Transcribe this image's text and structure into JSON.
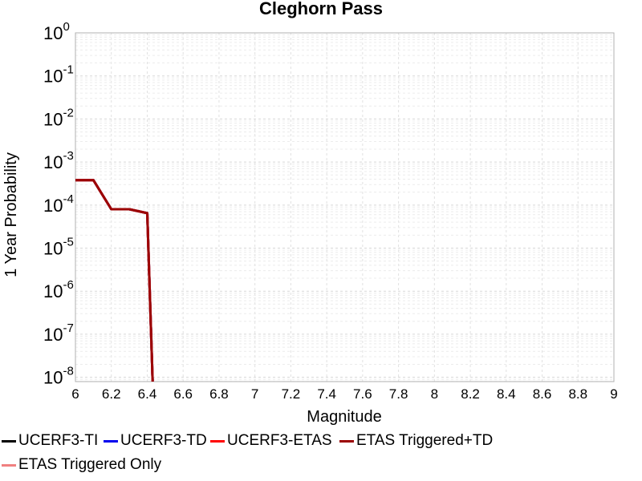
{
  "chart_data": {
    "type": "line",
    "title": "Cleghorn Pass",
    "xlabel": "Magnitude",
    "ylabel": "1 Year Probability",
    "xlim": [
      6,
      9
    ],
    "ylim_exponents": [
      -8.1,
      0
    ],
    "yscale": "log",
    "grid": true,
    "legend_position": "bottom",
    "x_ticks": [
      "6",
      "6.2",
      "6.4",
      "6.6",
      "6.8",
      "7",
      "7.2",
      "7.4",
      "7.6",
      "7.8",
      "8",
      "8.2",
      "8.4",
      "8.6",
      "8.8",
      "9"
    ],
    "y_tick_exponents": [
      "0",
      "-1",
      "-2",
      "-3",
      "-4",
      "-5",
      "-6",
      "-7",
      "-8"
    ],
    "y_tick_base": "10",
    "x": [
      6.0,
      6.1,
      6.2,
      6.3,
      6.4,
      6.43
    ],
    "series": [
      {
        "name": "UCERF3-TI",
        "color": "#000000",
        "values": [
          0.00038,
          0.00038,
          8e-05,
          8e-05,
          6.5e-05,
          6e-09
        ]
      },
      {
        "name": "UCERF3-TD",
        "color": "#0000ee",
        "values": [
          0.00038,
          0.00038,
          8e-05,
          8e-05,
          6.5e-05,
          6e-09
        ]
      },
      {
        "name": "UCERF3-ETAS",
        "color": "#ff0000",
        "values": [
          0.00038,
          0.00038,
          8e-05,
          8e-05,
          6.5e-05,
          6e-09
        ]
      },
      {
        "name": "ETAS Triggered+TD",
        "color": "#9b0000",
        "values": [
          0.00038,
          0.00038,
          8e-05,
          8e-05,
          6.5e-05,
          6e-09
        ]
      },
      {
        "name": "ETAS Triggered Only",
        "color": "#f08080",
        "values": [
          0.00038,
          0.00038,
          8e-05,
          8e-05,
          6.5e-05,
          6e-09
        ]
      }
    ]
  }
}
